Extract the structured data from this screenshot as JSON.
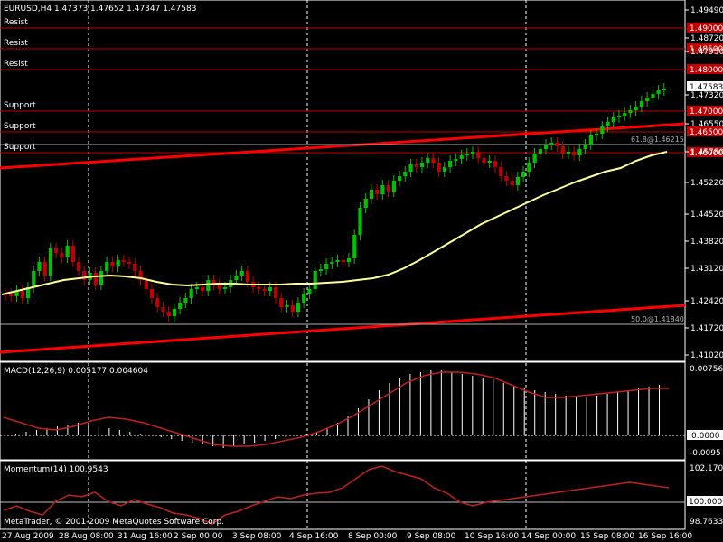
{
  "header": {
    "symbol_line": "EURUSD,H4  1.47373 1.47652 1.47347 1.47583"
  },
  "price_scale": [
    "1.49490",
    "1.48720",
    "1.47950",
    "1.47320",
    "1.46550",
    "1.45780",
    "1.45220",
    "1.44520",
    "1.43820",
    "1.43120",
    "1.42420",
    "1.41720",
    "1.41020"
  ],
  "levels": [
    {
      "label": "Resist",
      "price": "1.49000",
      "color": "#c00000"
    },
    {
      "label": "Resist",
      "price": "1.48500",
      "color": "#c00000"
    },
    {
      "label": "Resist",
      "price": "1.48000",
      "color": "#c00000"
    },
    {
      "label": "Support",
      "price": "1.47000",
      "color": "#c00000"
    },
    {
      "label": "Support",
      "price": "1.46500",
      "color": "#c00000"
    },
    {
      "label": "Support",
      "price": "1.46000",
      "color": "#c00000"
    }
  ],
  "current_price": "1.47583",
  "fibo": [
    {
      "label": "61.8@1.46215"
    },
    {
      "label": "50.0@1.41840"
    }
  ],
  "macd": {
    "title": "MACD(12,26,9) 0.005177 0.004604",
    "scale_top": "0.007563",
    "scale_zero": "0.0000",
    "scale_bottom": "-0.0095"
  },
  "momentum": {
    "title": "Momentum(14) 100.9543",
    "scale_top": "102.1707",
    "scale_mid": "100.0000",
    "scale_bottom": "98.7633"
  },
  "copyright": "MetaTrader, © 2001-2009 MetaQuotes Software Corp.",
  "time_axis": [
    "27 Aug 2009",
    "28 Aug 08:00",
    "31 Aug 16:00",
    "2 Sep 00:00",
    "3 Sep 08:00",
    "4 Sep 16:00",
    "8 Sep 00:00",
    "9 Sep 08:00",
    "10 Sep 16:00",
    "14 Sep 00:00",
    "15 Sep 08:00",
    "16 Sep 16:00"
  ],
  "colors": {
    "background": "#000000",
    "bull": "#00c000",
    "bear": "#c00000",
    "moving_average": "#ffff99",
    "channel": "#ff0000",
    "grid": "#ffffff",
    "macd_signal": "#c02020",
    "momentum_line": "#c02020"
  }
}
